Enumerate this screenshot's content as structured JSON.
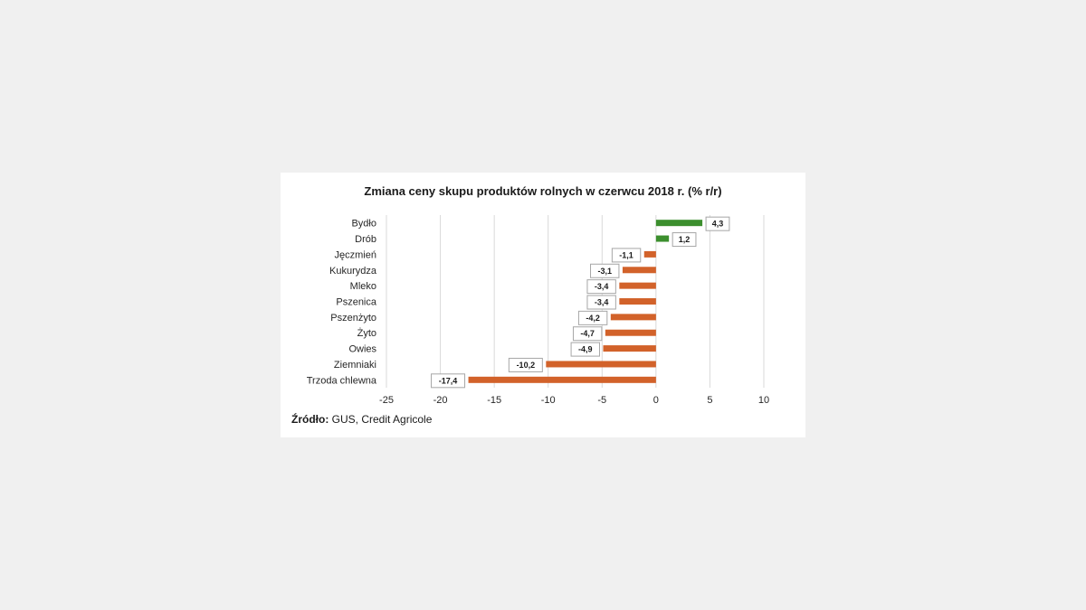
{
  "chart_data": {
    "type": "bar",
    "orientation": "horizontal",
    "title": "Zmiana ceny skupu produktów rolnych w czerwcu 2018 r. (% r/r)",
    "categories": [
      "Bydło",
      "Drób",
      "Jęczmień",
      "Kukurydza",
      "Mleko",
      "Pszenica",
      "Pszenżyto",
      "Żyto",
      "Owies",
      "Ziemniaki",
      "Trzoda chlewna"
    ],
    "values": [
      4.3,
      1.2,
      -1.1,
      -3.1,
      -3.4,
      -3.4,
      -4.2,
      -4.7,
      -4.9,
      -10.2,
      -17.4
    ],
    "value_labels": [
      "4,3",
      "1,2",
      "-1,1",
      "-3,1",
      "-3,4",
      "-3,4",
      "-4,2",
      "-4,7",
      "-4,9",
      "-10,2",
      "-17,4"
    ],
    "xlim": [
      -25,
      10
    ],
    "xticks": [
      -25,
      -20,
      -15,
      -10,
      -5,
      0,
      5,
      10
    ],
    "grid": true,
    "colors": {
      "positive": "#3c8f2e",
      "negative": "#d2622a",
      "grid": "#d9d9d9"
    },
    "xlabel": "",
    "ylabel": ""
  },
  "source": {
    "prefix": "Źródło:",
    "text": " GUS, Credit Agricole"
  }
}
